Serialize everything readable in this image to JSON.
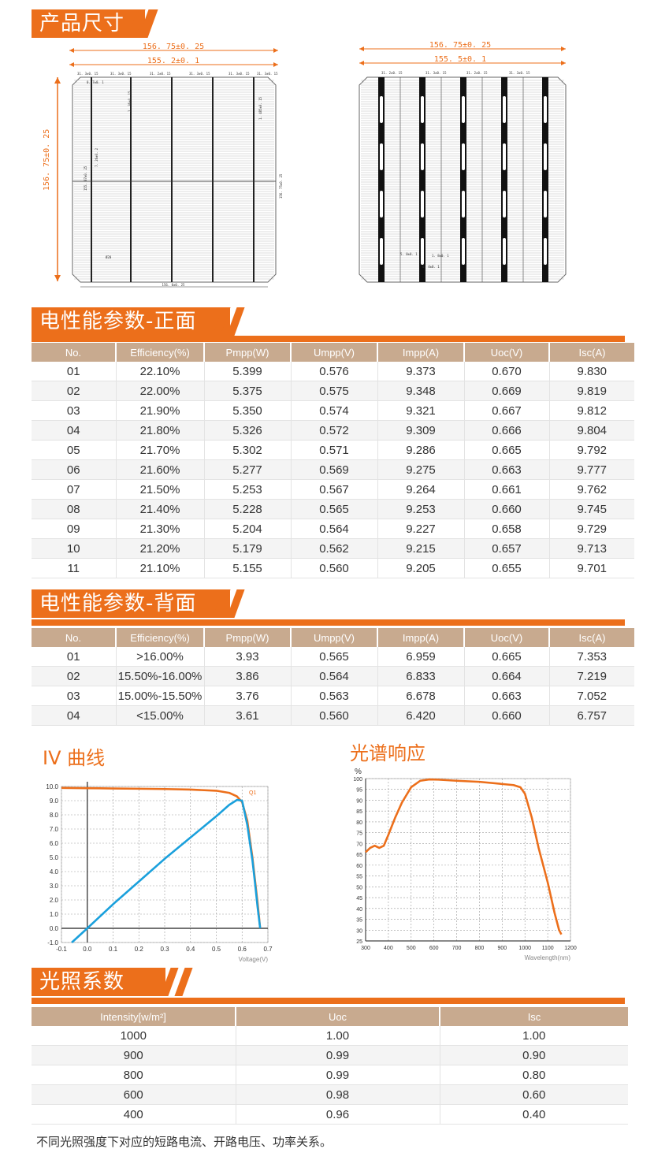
{
  "sections": {
    "size": "产品尺寸",
    "front": "电性能参数-正面",
    "back": "电性能参数-背面",
    "iv": "IV 曲线",
    "spectrum": "光谱响应",
    "light": "光照系数"
  },
  "drawing_left": {
    "outer_dim": "156. 75±0. 25",
    "inner_dim": "155. 2±0. 1",
    "side_dim": "156. 75±0. 25",
    "cell_dims": [
      "31. 3±0. 15",
      "31. 3±0. 15",
      "31. 2±0. 15",
      "31. 3±0. 15",
      "31. 3±0. 15",
      "31. 3±0. 15"
    ],
    "bottom_dim": "156. 0±0. 25",
    "right_dim": "156. 75±0. 25",
    "notes": [
      "0. 7±0. 1",
      "2. 36±0. 15",
      "1. 485±0. 15",
      "7. 26±0. 2",
      "155. 87±0. 25",
      "Ø20"
    ]
  },
  "drawing_right": {
    "outer_dim": "156. 75±0. 25",
    "inner_dim": "155. 5±0. 1",
    "cell_dims": [
      "31. 2±0. 15",
      "31. 3±0. 15",
      "31. 2±0. 15",
      "31. 3±0. 15"
    ],
    "notes": [
      "5. 0±0. 1",
      "1. 8±0. 1",
      "0. 4±0. 1"
    ]
  },
  "front_table": {
    "headers": [
      "No.",
      "Efficiency(%)",
      "Pmpp(W)",
      "Umpp(V)",
      "Impp(A)",
      "Uoc(V)",
      "Isc(A)"
    ],
    "rows": [
      [
        "01",
        "22.10%",
        "5.399",
        "0.576",
        "9.373",
        "0.670",
        "9.830"
      ],
      [
        "02",
        "22.00%",
        "5.375",
        "0.575",
        "9.348",
        "0.669",
        "9.819"
      ],
      [
        "03",
        "21.90%",
        "5.350",
        "0.574",
        "9.321",
        "0.667",
        "9.812"
      ],
      [
        "04",
        "21.80%",
        "5.326",
        "0.572",
        "9.309",
        "0.666",
        "9.804"
      ],
      [
        "05",
        "21.70%",
        "5.302",
        "0.571",
        "9.286",
        "0.665",
        "9.792"
      ],
      [
        "06",
        "21.60%",
        "5.277",
        "0.569",
        "9.275",
        "0.663",
        "9.777"
      ],
      [
        "07",
        "21.50%",
        "5.253",
        "0.567",
        "9.264",
        "0.661",
        "9.762"
      ],
      [
        "08",
        "21.40%",
        "5.228",
        "0.565",
        "9.253",
        "0.660",
        "9.745"
      ],
      [
        "09",
        "21.30%",
        "5.204",
        "0.564",
        "9.227",
        "0.658",
        "9.729"
      ],
      [
        "10",
        "21.20%",
        "5.179",
        "0.562",
        "9.215",
        "0.657",
        "9.713"
      ],
      [
        "11",
        "21.10%",
        "5.155",
        "0.560",
        "9.205",
        "0.655",
        "9.701"
      ]
    ]
  },
  "back_table": {
    "headers": [
      "No.",
      "Efficiency(%)",
      "Pmpp(W)",
      "Umpp(V)",
      "Impp(A)",
      "Uoc(V)",
      "Isc(A)"
    ],
    "rows": [
      [
        "01",
        ">16.00%",
        "3.93",
        "0.565",
        "6.959",
        "0.665",
        "7.353"
      ],
      [
        "02",
        "15.50%-16.00%",
        "3.86",
        "0.564",
        "6.833",
        "0.664",
        "7.219"
      ],
      [
        "03",
        "15.00%-15.50%",
        "3.76",
        "0.563",
        "6.678",
        "0.663",
        "7.052"
      ],
      [
        "04",
        "<15.00%",
        "3.61",
        "0.560",
        "6.420",
        "0.660",
        "6.757"
      ]
    ]
  },
  "light_table": {
    "headers": [
      "Intensity[w/m²]",
      "Uoc",
      "Isc"
    ],
    "rows": [
      [
        "1000",
        "1.00",
        "1.00"
      ],
      [
        "900",
        "0.99",
        "0.90"
      ],
      [
        "800",
        "0.99",
        "0.80"
      ],
      [
        "600",
        "0.98",
        "0.60"
      ],
      [
        "400",
        "0.96",
        "0.40"
      ]
    ]
  },
  "note": "不同光照强度下对应的短路电流、开路电压、功率关系。",
  "colors": {
    "accent": "#ec6f1b",
    "header": "#c8aa8f",
    "blue": "#1aa0dc"
  },
  "chart_data": [
    {
      "type": "line",
      "xlabel": "Voltage(V)",
      "ylabel": "",
      "xlim": [
        -0.1,
        0.7
      ],
      "ylim": [
        -1.0,
        10.0
      ],
      "xticks": [
        "-0.1",
        "0.0",
        "0.1",
        "0.2",
        "0.3",
        "0.4",
        "0.5",
        "0.6",
        "0.7"
      ],
      "yticks": [
        "-1.0",
        "0.0",
        "1.0",
        "2.0",
        "3.0",
        "4.0",
        "5.0",
        "6.0",
        "7.0",
        "8.0",
        "9.0",
        "10.0"
      ],
      "series": [
        {
          "name": "Q1",
          "color": "#ec6f1b",
          "x": [
            -0.1,
            0.0,
            0.1,
            0.2,
            0.3,
            0.4,
            0.5,
            0.55,
            0.58,
            0.6,
            0.62,
            0.64,
            0.66,
            0.67
          ],
          "y": [
            9.9,
            9.88,
            9.86,
            9.84,
            9.82,
            9.78,
            9.7,
            9.55,
            9.3,
            8.9,
            7.6,
            5.0,
            1.8,
            0.0
          ]
        },
        {
          "color": "#1aa0dc",
          "x": [
            -0.06,
            0.0,
            0.1,
            0.2,
            0.3,
            0.4,
            0.5,
            0.55,
            0.58,
            0.6,
            0.62,
            0.64,
            0.65,
            0.66,
            0.67
          ],
          "y": [
            -1.0,
            0.0,
            1.7,
            3.3,
            4.9,
            6.4,
            7.9,
            8.7,
            9.05,
            9.0,
            7.3,
            4.8,
            3.2,
            1.5,
            0.0
          ]
        }
      ]
    },
    {
      "type": "line",
      "ylabel": "%",
      "xlabel": "Wavelength(nm)",
      "xlim": [
        300,
        1200
      ],
      "ylim": [
        25,
        100
      ],
      "xticks": [
        "300",
        "400",
        "500",
        "600",
        "700",
        "800",
        "900",
        "1000",
        "1100",
        "1200"
      ],
      "yticks": [
        "25",
        "30",
        "35",
        "40",
        "45",
        "50",
        "55",
        "60",
        "65",
        "70",
        "75",
        "80",
        "85",
        "90",
        "95",
        "100"
      ],
      "series": [
        {
          "color": "#ec6f1b",
          "x": [
            300,
            320,
            340,
            360,
            380,
            400,
            430,
            460,
            500,
            540,
            580,
            620,
            700,
            800,
            900,
            950,
            980,
            1000,
            1030,
            1060,
            1100,
            1130,
            1150,
            1160
          ],
          "y": [
            66,
            68,
            69,
            68,
            69,
            74,
            82,
            89,
            96,
            99,
            99.6,
            99.5,
            99,
            98.5,
            97.5,
            97,
            96,
            93,
            82,
            68,
            52,
            38,
            30,
            28
          ]
        }
      ]
    }
  ]
}
